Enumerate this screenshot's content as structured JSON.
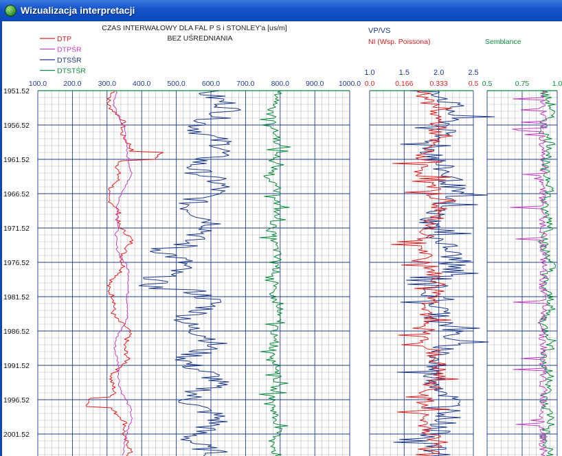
{
  "window": {
    "title": "Wizualizacja interpretacji"
  },
  "header": {
    "title_line1": "CZAS INTERWAŁOWY DLA FAL P S i STONLEY'a [us/m]",
    "title_line2": "BEZ UŚREDNIANIA",
    "right_vpvs_label": "VP/VS",
    "right_ni_label": "NI (Wsp. Poissona)",
    "right_semblance_label": "Semblance"
  },
  "colors": {
    "DTP": "#e02020",
    "DTPSR": "#c040c0",
    "DTSSR": "#1c3a8c",
    "DTSTSR": "#0a8a3a",
    "grid_major": "#1c3a8c",
    "grid_minor": "#b8b8b8",
    "vpvs": "#1c3a8c",
    "ni": "#e02020",
    "semb": "#0a8a3a"
  },
  "chart_data": [
    {
      "type": "line",
      "title": "CZAS INTERWAŁOWY DLA FAL P S i STONLEY'a [us/m]",
      "subtitle": "BEZ UŚREDNIANIA",
      "xlim": [
        100,
        1000
      ],
      "x_ticks": [
        "100.0",
        "200.0",
        "300.0",
        "400.0",
        "500.0",
        "600.0",
        "700.0",
        "800.0",
        "900.0",
        "1000.0"
      ],
      "ylim": [
        1951.52,
        2004.0
      ],
      "y_ticks": [
        "1951.52",
        "1956.52",
        "1961.52",
        "1966.52",
        "1971.52",
        "1976.52",
        "1981.52",
        "1986.52",
        "1991.52",
        "1996.52",
        "2001.52"
      ],
      "series": [
        {
          "name": "DTP",
          "approx_range": [
            270,
            445
          ]
        },
        {
          "name": "DTPŚR",
          "approx_range": [
            280,
            400
          ]
        },
        {
          "name": "DTSŚR",
          "approx_range": [
            430,
            720
          ]
        },
        {
          "name": "DTSTŚR",
          "approx_range": [
            760,
            880
          ]
        }
      ]
    },
    {
      "type": "line",
      "series": [
        {
          "name": "VP/VS",
          "xlim": [
            1.0,
            2.5
          ],
          "x_ticks": [
            "1.0",
            "1.5",
            "2.0",
            "2.5"
          ]
        },
        {
          "name": "NI (Wsp. Poissona)",
          "xlim": [
            0,
            0.5
          ],
          "x_ticks": [
            "0.0",
            "0.166",
            "0.333",
            "0.5"
          ]
        }
      ]
    },
    {
      "type": "line",
      "series": [
        {
          "name": "Semblance",
          "xlim": [
            0.5,
            1.0
          ],
          "x_ticks": [
            "0.5",
            "0.75",
            "1.0"
          ]
        }
      ]
    }
  ]
}
